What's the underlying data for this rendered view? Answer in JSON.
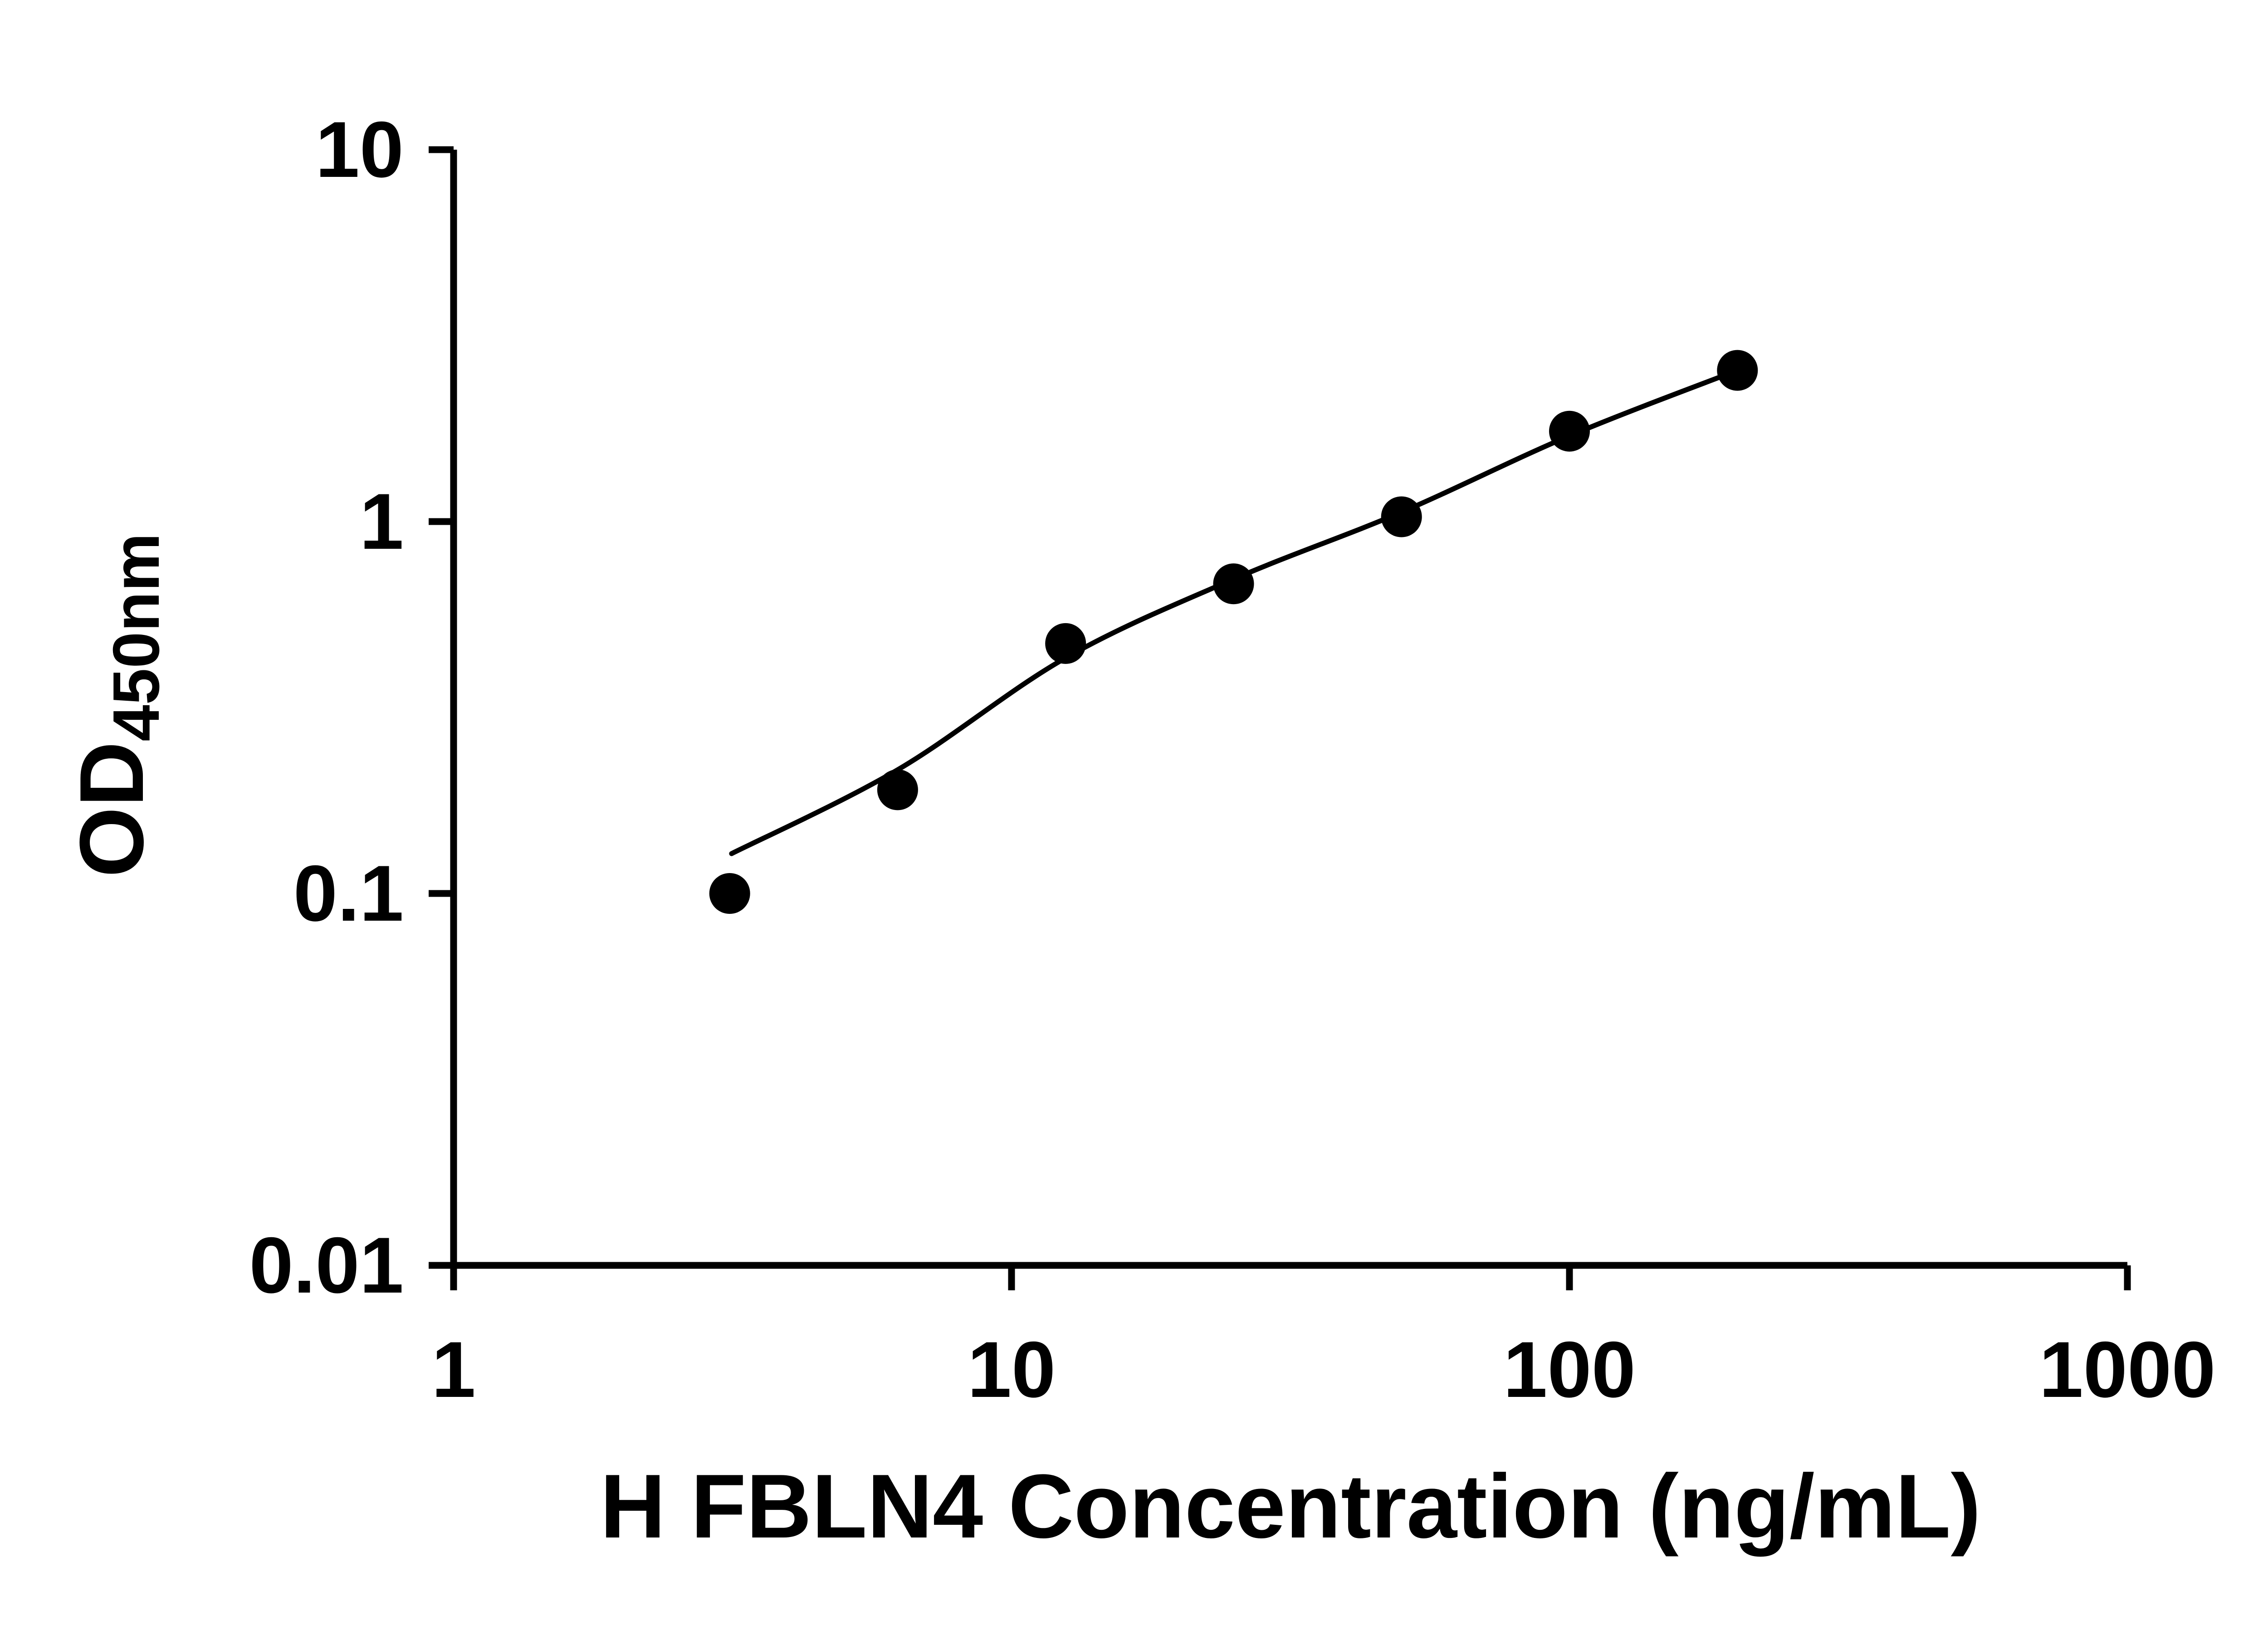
{
  "figure": {
    "background_color": "#ffffff",
    "foreground_color": "#000000",
    "description": "ELISA standard curve: log-log scatter plot of OD450nm vs H FBLN4 concentration with fitted curve"
  },
  "chart_data": {
    "type": "scatter",
    "title": "",
    "xlabel": "H FBLN4 Concentration (ng/mL)",
    "ylabel": "OD450nm",
    "ylabel_main": "OD",
    "ylabel_sub": "450nm",
    "x_scale": "log10",
    "y_scale": "log10",
    "xlim": [
      1,
      1000
    ],
    "ylim": [
      0.01,
      10
    ],
    "x_ticks": [
      1,
      10,
      100,
      1000
    ],
    "x_tick_labels": [
      "1",
      "10",
      "100",
      "1000"
    ],
    "y_ticks": [
      10,
      1,
      0.1,
      0.01
    ],
    "y_tick_labels": [
      "10",
      "1",
      "0.1",
      "0.01"
    ],
    "grid": false,
    "legend": "none",
    "marker": "filled-circle",
    "marker_color": "#000000",
    "line_color": "#000000",
    "series": [
      {
        "name": "standard-curve-points",
        "role": "scatter",
        "x": [
          3.125,
          6.25,
          12.5,
          25,
          50,
          100,
          200
        ],
        "y": [
          0.1,
          0.19,
          0.47,
          0.68,
          1.03,
          1.75,
          2.55
        ]
      },
      {
        "name": "fit-curve",
        "role": "line",
        "x": [
          3.15,
          6.25,
          12.5,
          25,
          50,
          100,
          200
        ],
        "y": [
          0.128,
          0.215,
          0.43,
          0.7,
          1.06,
          1.7,
          2.55
        ]
      }
    ]
  }
}
